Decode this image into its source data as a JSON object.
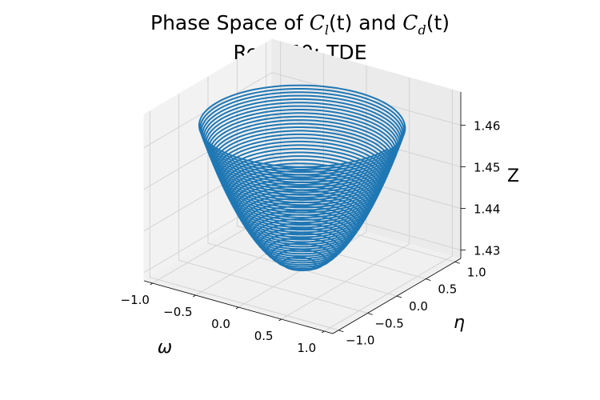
{
  "figure": {
    "title_prefix": "Phase Space of ",
    "title_cl_symbol": "C",
    "title_cl_sub": "l",
    "title_cl_arg": "(t)",
    "title_and": " and ",
    "title_cd_symbol": "C",
    "title_cd_sub": "d",
    "title_cd_arg": "(t)",
    "title_line2": "Re = 50; TDE"
  },
  "chart_data": {
    "type": "line",
    "projection": "3d",
    "title": "Phase Space of Cl(t) and Cd(t) / Re = 50; TDE",
    "xlabel": "ω",
    "ylabel": "η",
    "zlabel": "Z",
    "xlim": [
      -1.1,
      1.1
    ],
    "ylim": [
      -1.1,
      1.1
    ],
    "zlim": [
      1.428,
      1.468
    ],
    "x_ticks": [
      "−1.0",
      "−0.5",
      "0.0",
      "0.5",
      "1.0"
    ],
    "y_ticks": [
      "−1.0",
      "−0.5",
      "0.0",
      "0.5",
      "1.0"
    ],
    "z_ticks": [
      "1.43",
      "1.44",
      "1.45",
      "1.46"
    ],
    "x_tick_values": [
      -1.0,
      -0.5,
      0.0,
      0.5,
      1.0
    ],
    "y_tick_values": [
      -1.0,
      -0.5,
      0.0,
      0.5,
      1.0
    ],
    "z_tick_values": [
      1.43,
      1.44,
      1.45,
      1.46
    ],
    "grid": true,
    "series": [
      {
        "color": "#1f77b4",
        "shape": "paraboloid spiral: radius grows from 0.08 to 1.0, z = 1.4284 + 0.0344*r^2",
        "r_start": 0.08,
        "r_end": 1.0,
        "z_min": 1.4284,
        "z_max": 1.4628,
        "turns": 44
      }
    ]
  }
}
